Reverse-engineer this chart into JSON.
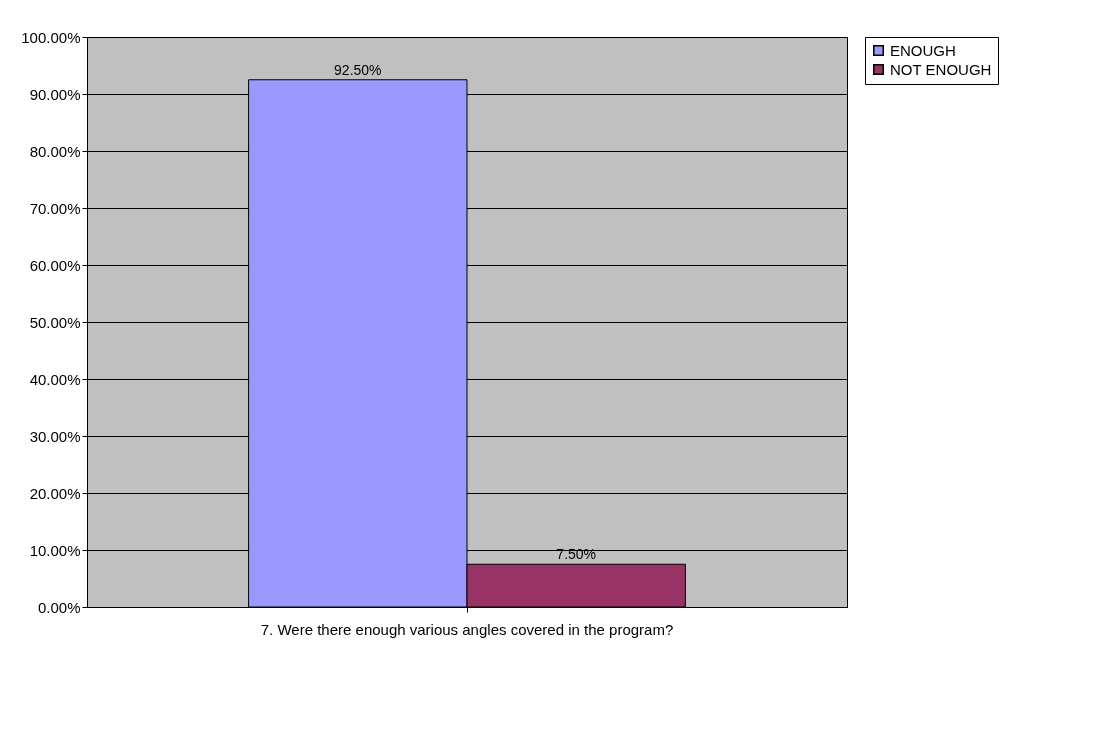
{
  "chart_data": {
    "type": "bar",
    "categories": [
      "7. Were there enough various angles covered in the program?"
    ],
    "series": [
      {
        "name": "ENOUGH",
        "color": "#9999ff",
        "values": [
          92.5
        ],
        "value_labels": [
          "92.50%"
        ]
      },
      {
        "name": "NOT ENOUGH",
        "color": "#993366",
        "values": [
          7.5
        ],
        "value_labels": [
          "7.50%"
        ]
      }
    ],
    "ylim": [
      0,
      100
    ],
    "yticks": [
      {
        "value": 0,
        "label": "0.00%"
      },
      {
        "value": 10,
        "label": "10.00%"
      },
      {
        "value": 20,
        "label": "20.00%"
      },
      {
        "value": 30,
        "label": "30.00%"
      },
      {
        "value": 40,
        "label": "40.00%"
      },
      {
        "value": 50,
        "label": "50.00%"
      },
      {
        "value": 60,
        "label": "60.00%"
      },
      {
        "value": 70,
        "label": "70.00%"
      },
      {
        "value": 80,
        "label": "80.00%"
      },
      {
        "value": 90,
        "label": "90.00%"
      },
      {
        "value": 100,
        "label": "100.00%"
      }
    ],
    "grid": "y",
    "legend": "right"
  }
}
